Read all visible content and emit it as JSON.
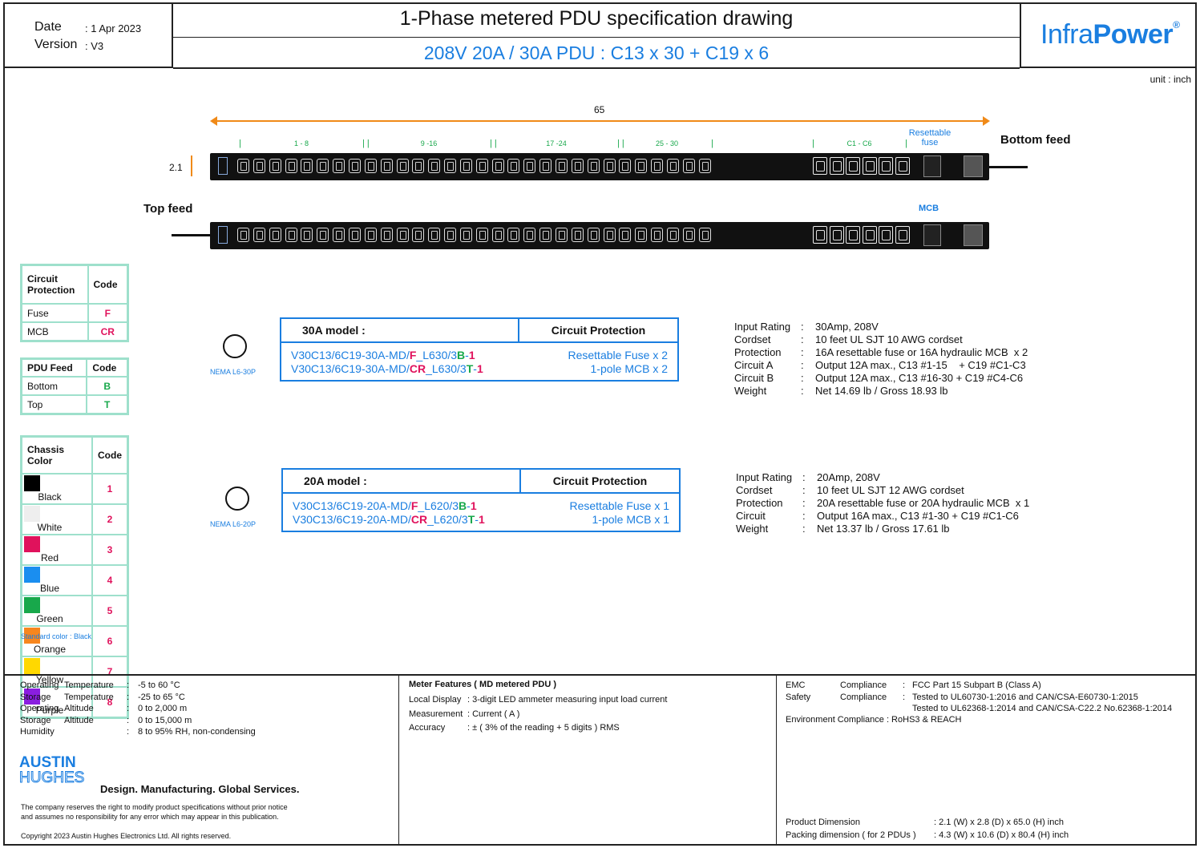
{
  "header": {
    "date_label": "Date",
    "date_value": ": 1 Apr 2023",
    "version_label": "Version",
    "version_value": ": V3",
    "title": "1-Phase metered PDU specification drawing",
    "subtitle": "208V 20A / 30A PDU  :  C13 x 30  +  C19 x 6",
    "logo_a": "Infra",
    "logo_b": "Power",
    "logo_reg": "®"
  },
  "unit": "unit : inch",
  "drawing": {
    "length": "65",
    "height": "2.1",
    "groups": [
      "1 - 8",
      "9 -16",
      "17 -24",
      "25 - 30",
      "C1 - C6"
    ],
    "resettable_fuse": "Resettable\nfuse",
    "bottom_feed": "Bottom feed",
    "top_feed": "Top feed",
    "mcb": "MCB",
    "c13_count": 30,
    "c19_count": 6
  },
  "circuit_protection_table": {
    "headers": [
      "Circuit\nProtection",
      "Code"
    ],
    "rows": [
      [
        "Fuse",
        "F"
      ],
      [
        "MCB",
        "CR"
      ]
    ]
  },
  "pdu_feed_table": {
    "headers": [
      "PDU Feed",
      "Code"
    ],
    "rows": [
      [
        "Bottom",
        "B"
      ],
      [
        "Top",
        "T"
      ]
    ]
  },
  "chassis_color_table": {
    "headers": [
      "Chassis\nColor",
      "Code"
    ],
    "rows": [
      {
        "name": "Black",
        "code": "1",
        "color": "#000000"
      },
      {
        "name": "White",
        "code": "2",
        "color": "#eeeeee"
      },
      {
        "name": "Red",
        "code": "3",
        "color": "#e0125c"
      },
      {
        "name": "Blue",
        "code": "4",
        "color": "#1a8ef0"
      },
      {
        "name": "Green",
        "code": "5",
        "color": "#18a84b"
      },
      {
        "name": "Orange",
        "code": "6",
        "color": "#f7861e"
      },
      {
        "name": "Yellow",
        "code": "7",
        "color": "#ffd800"
      },
      {
        "name": "Purple",
        "code": "8",
        "color": "#8a1ee0"
      }
    ],
    "note": "Standard color : Black"
  },
  "model_30a": {
    "plug": "NEMA L6-30P",
    "header_model": "30A model :",
    "header_cp": "Circuit Protection",
    "row1": {
      "p1": "V30C13/6C19-30A-MD/",
      "f": "F",
      "p2": "_L630/3",
      "b": "B",
      "p3": "-",
      "n": "1",
      "cp": "Resettable Fuse x 2"
    },
    "row2": {
      "p1": "V30C13/6C19-30A-MD/",
      "f": "CR",
      "p2": "_L630/3",
      "b": "T",
      "p3": "-",
      "n": "1",
      "cp": "1-pole MCB x 2"
    },
    "specs": [
      [
        "Input Rating",
        ":",
        "30Amp, 208V"
      ],
      [
        "Cordset",
        ":",
        "10 feet UL SJT 10 AWG cordset"
      ],
      [
        "Protection",
        ":",
        "16A resettable fuse or 16A hydraulic MCB  x 2"
      ],
      [
        "Circuit A",
        ":",
        "Output 12A max., C13 #1-15    + C19 #C1-C3"
      ],
      [
        "Circuit B",
        ":",
        "Output 12A max., C13 #16-30 + C19 #C4-C6"
      ],
      [
        "Weight",
        ":",
        "Net 14.69 lb / Gross 18.93 lb"
      ]
    ]
  },
  "model_20a": {
    "plug": "NEMA L6-20P",
    "header_model": "20A model :",
    "header_cp": "Circuit Protection",
    "row1": {
      "p1": "V30C13/6C19-20A-MD/",
      "f": "F",
      "p2": "_L620/3",
      "b": "B",
      "p3": "-",
      "n": "1",
      "cp": "Resettable Fuse x 1"
    },
    "row2": {
      "p1": "V30C13/6C19-20A-MD/",
      "f": "CR",
      "p2": "_L620/3",
      "b": "T",
      "p3": "-",
      "n": "1",
      "cp": "1-pole MCB x 1"
    },
    "specs": [
      [
        "Input Rating",
        ":",
        "20Amp, 208V"
      ],
      [
        "Cordset",
        ":",
        "10 feet UL SJT 12 AWG cordset"
      ],
      [
        "Protection",
        ":",
        "20A resettable fuse or 20A hydraulic MCB  x 1"
      ],
      [
        "Circuit",
        ":",
        "Output 16A max., C13 #1-30 + C19 #C1-C6"
      ],
      [
        "Weight",
        ":",
        "Net 13.37 lb / Gross 17.61 lb"
      ]
    ]
  },
  "footer": {
    "env": [
      [
        "Operating",
        "Temperature",
        ":",
        "-5 to 60 °C"
      ],
      [
        "Storage",
        "Temperature",
        ":",
        "-25 to 65 °C"
      ],
      [
        "Operating",
        "Altitude",
        ":",
        "0 to 2,000 m"
      ],
      [
        "Storage",
        "Altitude",
        ":",
        "0 to 15,000 m"
      ],
      [
        "Humidity",
        "",
        ":",
        "8 to 95% RH, non-condensing"
      ]
    ],
    "brand_a": "AUSTIN",
    "brand_b": "HUGHES",
    "tagline": "Design. Manufacturing. Global Services.",
    "disclaimer1": "The company reserves the right to modify product specifications without prior notice",
    "disclaimer2": "and assumes no responsibility for any error which may appear in this publication.",
    "copyright": "Copyright 2023 Austin Hughes Electronics Ltd. All rights reserved.",
    "meter_title": "Meter Features ( MD metered PDU )",
    "meter": [
      [
        "Local Display",
        ": 3-digit LED ammeter measuring input load current"
      ],
      [
        "Measurement",
        ": Current ( A )"
      ],
      [
        "Accuracy",
        ": ± ( 3% of the reading + 5 digits ) RMS"
      ]
    ],
    "emc": [
      [
        "EMC",
        "Compliance",
        ":",
        "FCC Part 15 Subpart B (Class A)"
      ],
      [
        "Safety",
        "Compliance",
        ":",
        "Tested to UL60730-1:2016 and CAN/CSA-E60730-1:2015"
      ],
      [
        "",
        "",
        "",
        "Tested to UL62368-1:2014 and CAN/CSA-C22.2 No.62368-1:2014"
      ]
    ],
    "env_compliance": "Environment Compliance  :  RoHS3 & REACH",
    "product_dim_label": "Product Dimension",
    "product_dim_value": ":   2.1 (W) x 2.8 (D) x 65.0 (H) inch",
    "pack_dim_label": "Packing dimension ( for 2 PDUs )",
    "pack_dim_value": ":   4.3 (W) x 10.6 (D) x 80.4 (H) inch"
  }
}
